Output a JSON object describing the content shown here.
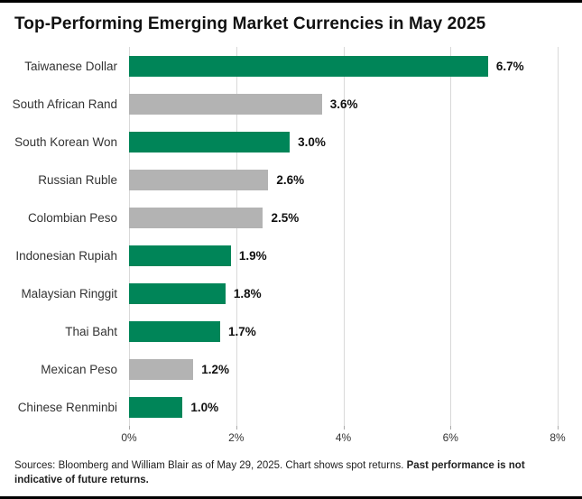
{
  "title": "Top-Performing Emerging Market Currencies in May 2025",
  "footer": {
    "normal": "Sources: Bloomberg and William Blair as of May 29, 2025. Chart shows spot returns. ",
    "bold": "Past performance is not indicative of future returns."
  },
  "chart_data": {
    "type": "bar",
    "orientation": "horizontal",
    "title": "Top-Performing Emerging Market Currencies in May 2025",
    "categories": [
      "Taiwanese Dollar",
      "South African Rand",
      "South Korean Won",
      "Russian Ruble",
      "Colombian Peso",
      "Indonesian Rupiah",
      "Malaysian Ringgit",
      "Thai Baht",
      "Mexican Peso",
      "Chinese Renminbi"
    ],
    "values": [
      6.7,
      3.6,
      3.0,
      2.6,
      2.5,
      1.9,
      1.8,
      1.7,
      1.2,
      1.0
    ],
    "value_labels": [
      "6.7%",
      "3.6%",
      "3.0%",
      "2.6%",
      "2.5%",
      "1.9%",
      "1.8%",
      "1.7%",
      "1.2%",
      "1.0%"
    ],
    "bar_colors": [
      "green",
      "gray",
      "green",
      "gray",
      "gray",
      "green",
      "green",
      "green",
      "gray",
      "green"
    ],
    "colors": {
      "green": "#008558",
      "gray": "#b3b3b3"
    },
    "xlim": [
      0,
      8
    ],
    "x_tick_labels": [
      "0%",
      "2%",
      "4%",
      "6%",
      "8%"
    ],
    "grid": "vertical",
    "legend": "none"
  }
}
